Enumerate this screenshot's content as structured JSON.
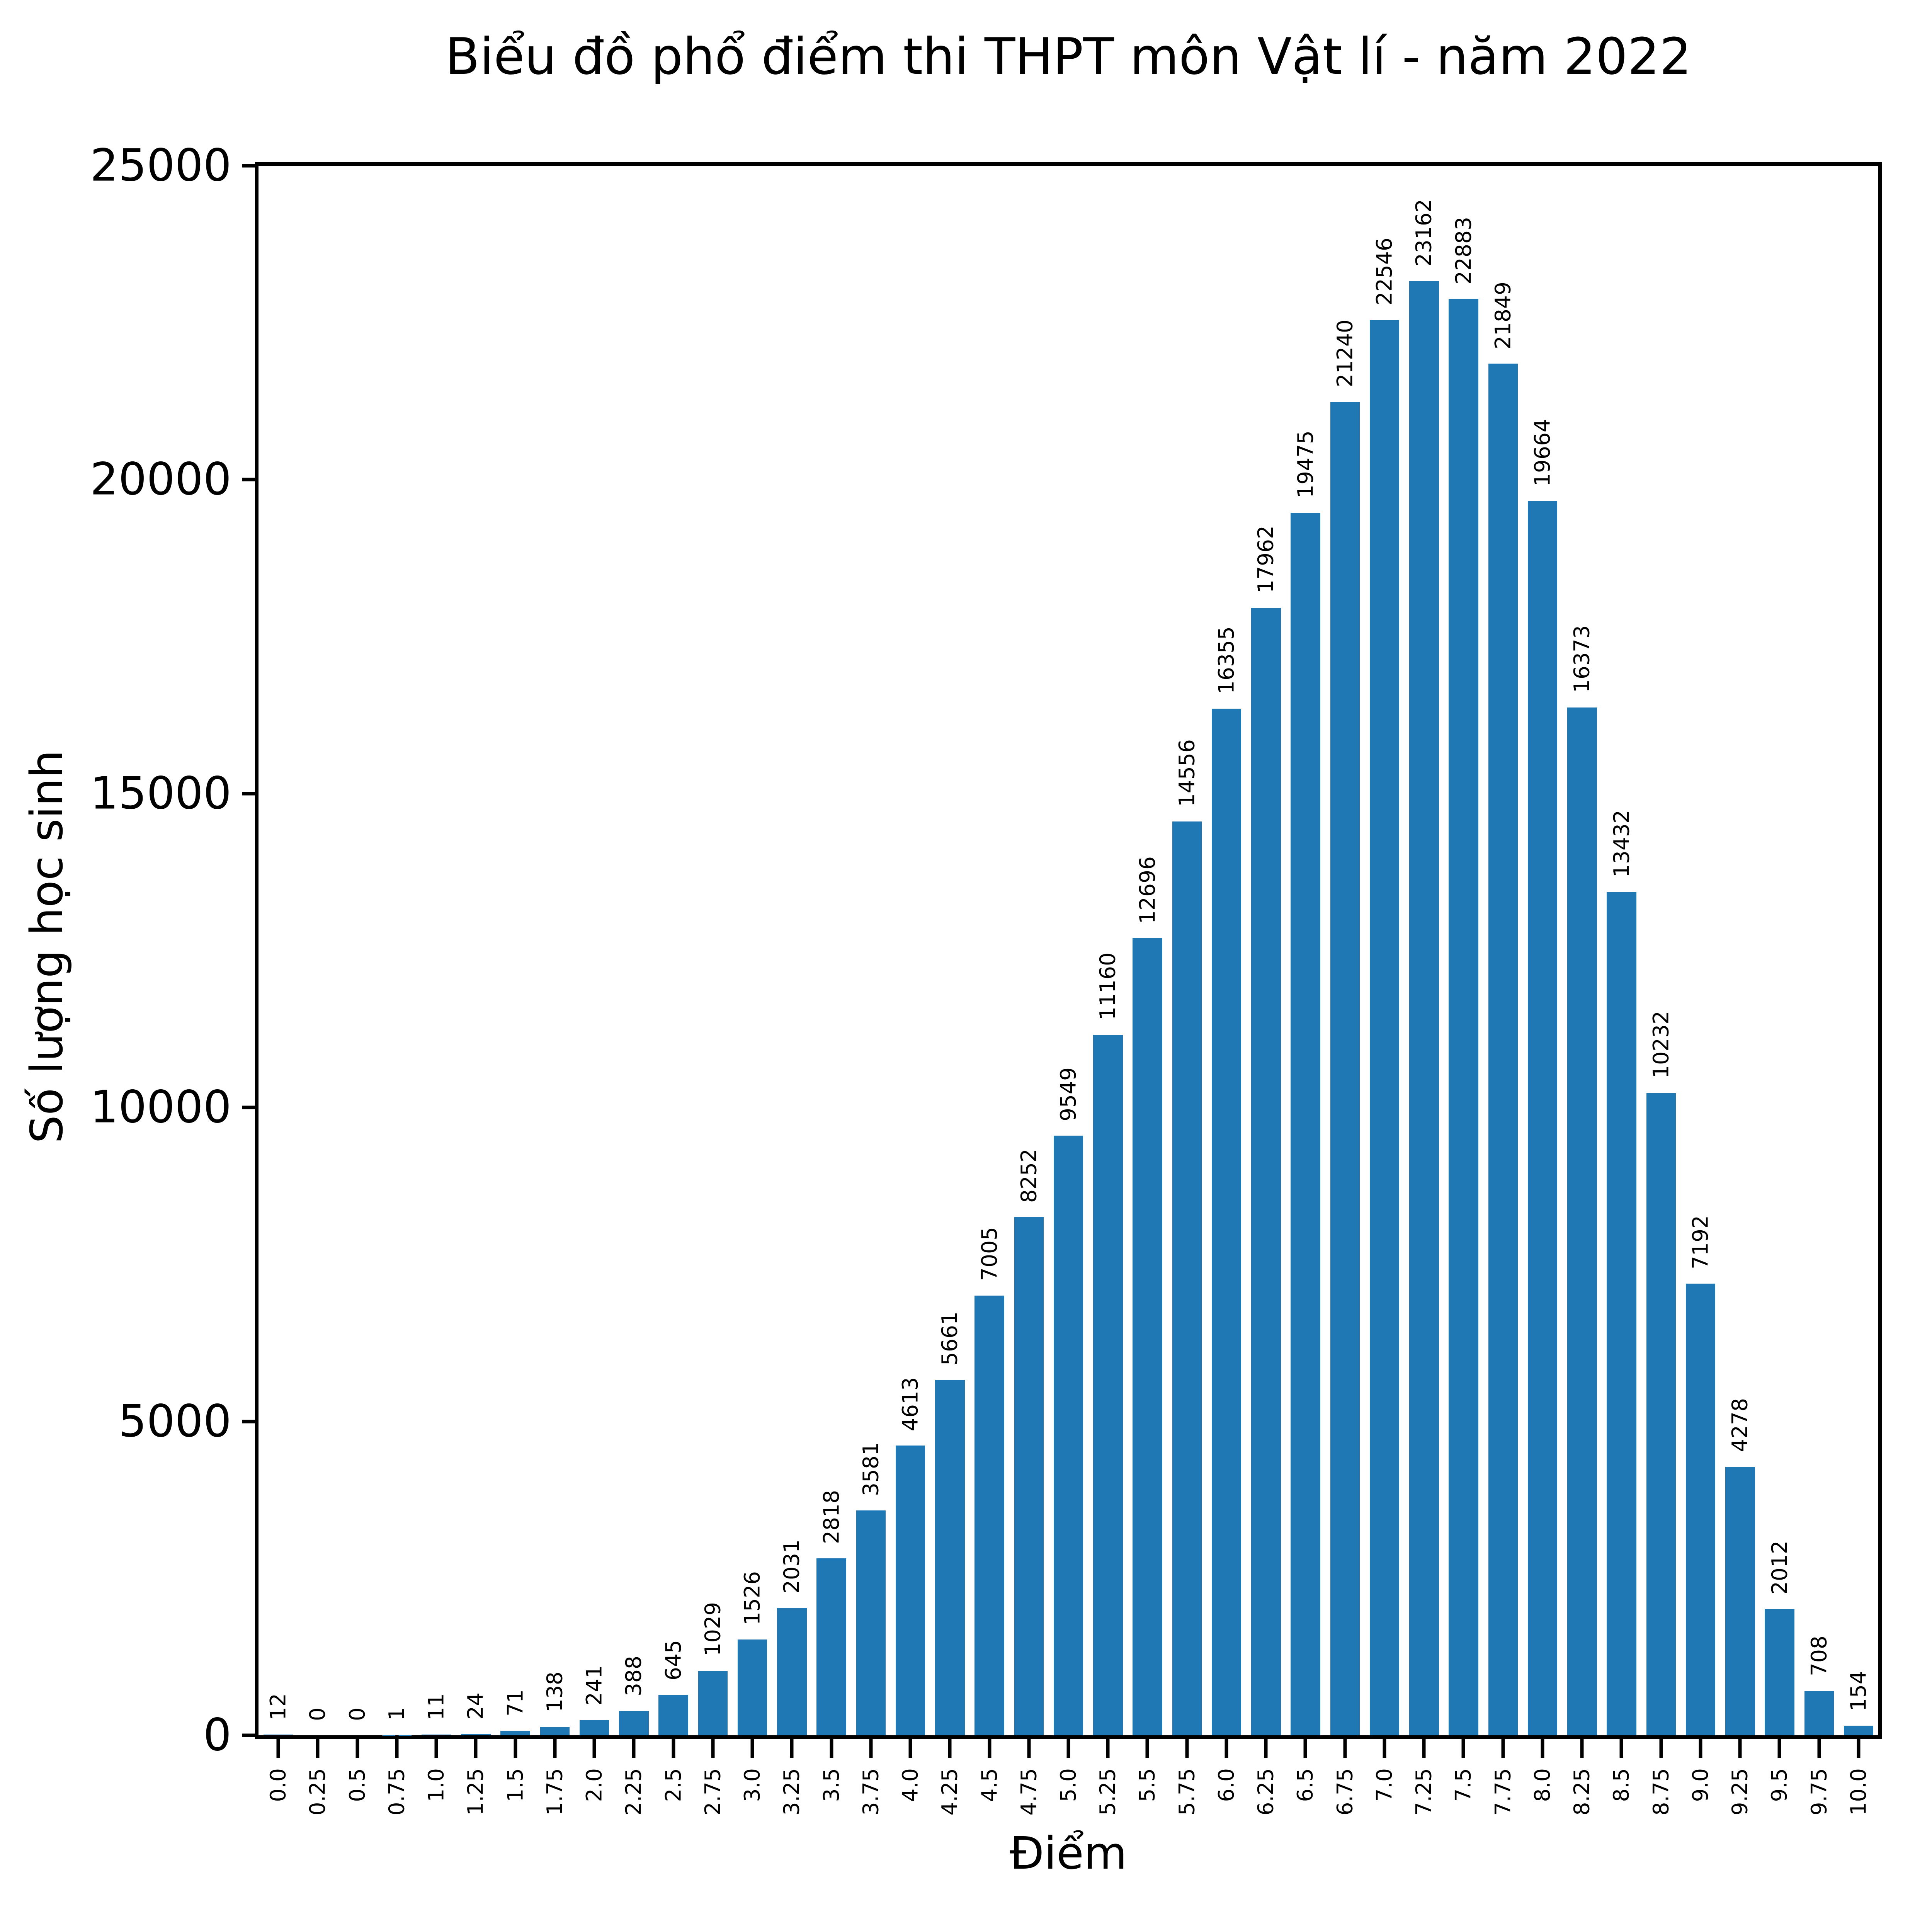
{
  "figure": {
    "background": "#ffffff",
    "text_color": "#000000"
  },
  "chart_data": {
    "type": "bar",
    "title": "Biểu đồ phổ điểm thi THPT môn Vật lí - năm 2022",
    "xlabel": "Điểm",
    "ylabel": "Số lượng học sinh",
    "categories": [
      "0.0",
      "0.25",
      "0.5",
      "0.75",
      "1.0",
      "1.25",
      "1.5",
      "1.75",
      "2.0",
      "2.25",
      "2.5",
      "2.75",
      "3.0",
      "3.25",
      "3.5",
      "3.75",
      "4.0",
      "4.25",
      "4.5",
      "4.75",
      "5.0",
      "5.25",
      "5.5",
      "5.75",
      "6.0",
      "6.25",
      "6.5",
      "6.75",
      "7.0",
      "7.25",
      "7.5",
      "7.75",
      "8.0",
      "8.25",
      "8.5",
      "8.75",
      "9.0",
      "9.25",
      "9.5",
      "9.75",
      "10.0"
    ],
    "values": [
      12,
      0,
      0,
      1,
      11,
      24,
      71,
      138,
      241,
      388,
      645,
      1029,
      1526,
      2031,
      2818,
      3581,
      4613,
      5661,
      7005,
      8252,
      9549,
      11160,
      12696,
      14556,
      16355,
      17962,
      19475,
      21240,
      22546,
      23162,
      22883,
      21849,
      19664,
      16373,
      13432,
      10232,
      7192,
      4278,
      2012,
      708,
      154
    ],
    "yticks": [
      0,
      5000,
      10000,
      15000,
      20000,
      25000
    ],
    "ylim": [
      0,
      25000
    ],
    "grid": false,
    "legend": "none",
    "bar_color": "#1f77b4",
    "value_labels_rotation": 90
  }
}
